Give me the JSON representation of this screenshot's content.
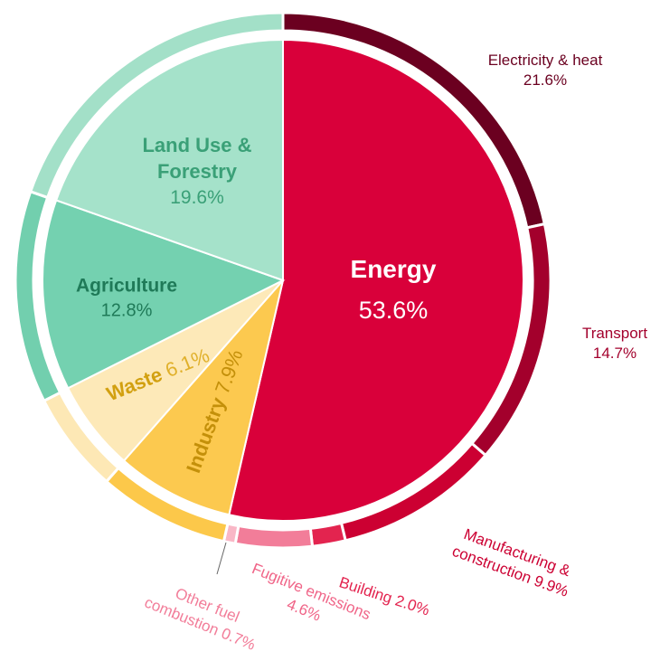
{
  "chart_data": {
    "type": "pie",
    "categories": [
      "Energy",
      "Industry",
      "Waste",
      "Agriculture",
      "Land Use & Forestry"
    ],
    "values": [
      53.6,
      7.9,
      6.1,
      12.8,
      19.6
    ],
    "value_labels": [
      "53.6%",
      "7.9%",
      "6.1%",
      "12.8%",
      "19.6%"
    ],
    "colors": [
      "#d9003a",
      "#fcc94f",
      "#fde9b8",
      "#74d1b0",
      "#a5e2ca"
    ],
    "outer": {
      "categories": [
        "Electricity & heat",
        "Transport",
        "Manufacturing & construction",
        "Building",
        "Fugitive emissions",
        "Other fuel combustion",
        null,
        null,
        null,
        null
      ],
      "values": [
        21.6,
        14.7,
        9.9,
        2.0,
        4.6,
        0.7,
        7.9,
        6.1,
        12.8,
        19.6
      ],
      "value_labels": [
        "21.6%",
        "14.7%",
        "9.9%",
        "2.0%",
        "4.6%",
        "0.7%",
        null,
        null,
        null,
        null
      ],
      "colors": [
        "#6b0020",
        "#a3002c",
        "#cc0032",
        "#e3244f",
        "#f27d99",
        "#f9b7c6",
        "#fcc84a",
        "#fde8b5",
        "#72cfae",
        "#a3e0c8"
      ]
    }
  }
}
